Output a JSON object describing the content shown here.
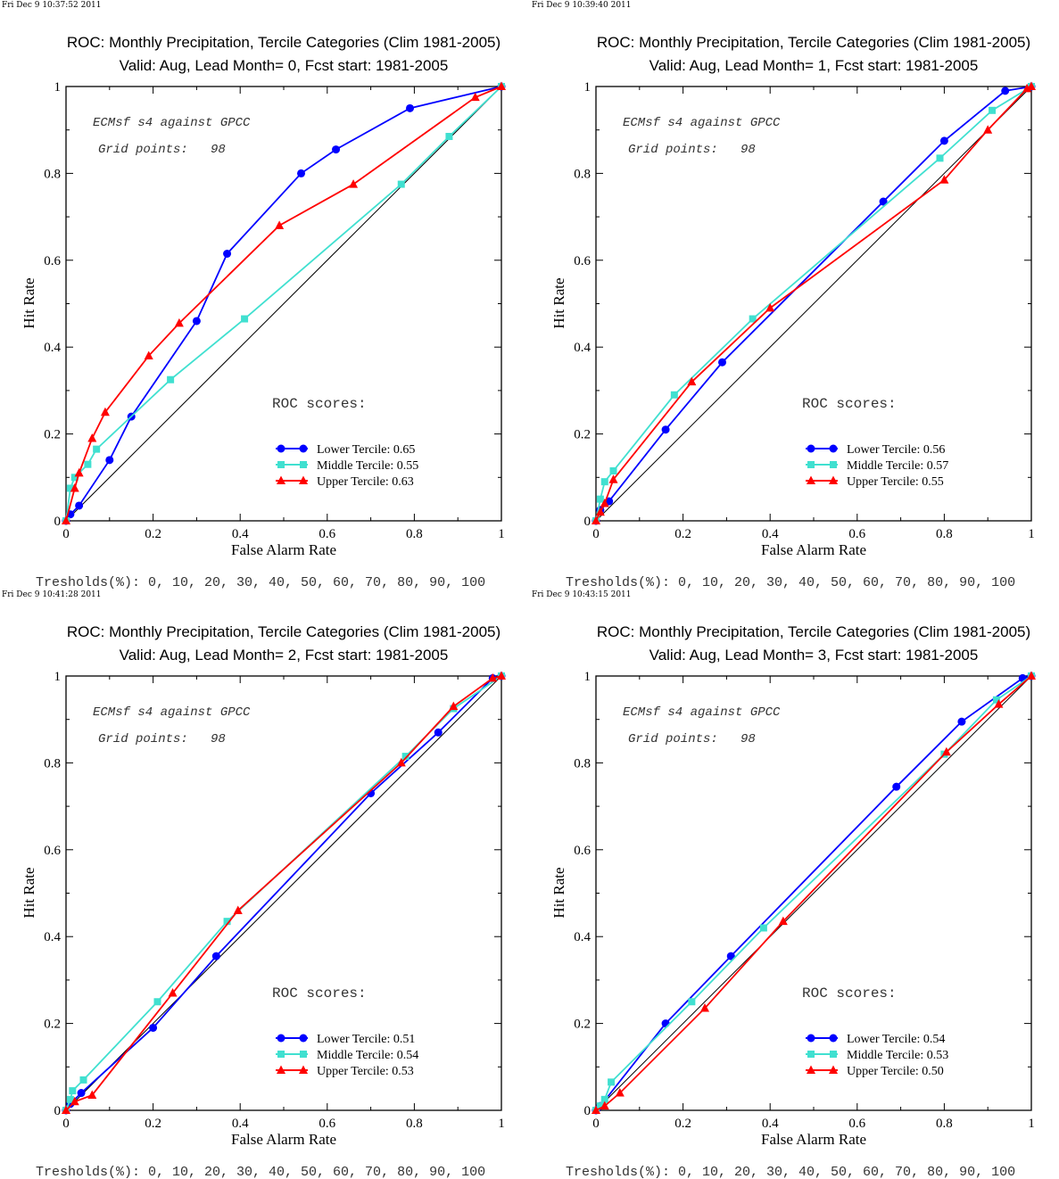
{
  "chart_data": [
    {
      "type": "line",
      "stamp": "Fri Dec  9 10:37:52 2011",
      "title": "ROC: Monthly Precipitation, Tercile Categories (Clim 1981-2005)",
      "subtitle": "Valid: Aug, Lead Month= 0, Fcst start: 1981-2005",
      "xlabel": "False Alarm Rate",
      "ylabel": "Hit Rate",
      "xlim": [
        0,
        1
      ],
      "ylim": [
        0,
        1
      ],
      "ticks": [
        "0",
        "0.2",
        "0.4",
        "0.6",
        "0.8",
        "1"
      ],
      "annotation_1": "ECMsf s4 against GPCC",
      "annotation_2": "Grid points:   98",
      "scores_heading": "ROC scores:",
      "thresholds": "Tresholds(%): 0, 10, 20, 30, 40, 50, 60, 70, 80, 90, 100",
      "series": [
        {
          "name": "Lower Tercile: 0.65",
          "color": "#0000ff",
          "marker": "circle",
          "x": [
            0.0,
            0.01,
            0.03,
            0.1,
            0.15,
            0.3,
            0.37,
            0.54,
            0.62,
            0.79,
            1.0
          ],
          "y": [
            0.0,
            0.015,
            0.035,
            0.14,
            0.24,
            0.46,
            0.615,
            0.8,
            0.855,
            0.95,
            1.0
          ]
        },
        {
          "name": "Middle Tercile: 0.55",
          "color": "#40e0d0",
          "marker": "square",
          "x": [
            0.0,
            0.01,
            0.02,
            0.05,
            0.07,
            0.24,
            0.41,
            0.77,
            0.88,
            1.0
          ],
          "y": [
            0.0,
            0.075,
            0.1,
            0.13,
            0.165,
            0.325,
            0.465,
            0.775,
            0.885,
            1.0
          ]
        },
        {
          "name": "Upper Tercile: 0.63",
          "color": "#ff0000",
          "marker": "triangle",
          "x": [
            0.0,
            0.02,
            0.03,
            0.06,
            0.09,
            0.19,
            0.26,
            0.49,
            0.66,
            0.94,
            1.0
          ],
          "y": [
            0.0,
            0.075,
            0.11,
            0.19,
            0.25,
            0.38,
            0.455,
            0.68,
            0.775,
            0.975,
            1.0
          ]
        }
      ]
    },
    {
      "type": "line",
      "stamp": "Fri Dec  9 10:39:40 2011",
      "title": "ROC: Monthly Precipitation, Tercile Categories (Clim 1981-2005)",
      "subtitle": "Valid: Aug, Lead Month= 1, Fcst start: 1981-2005",
      "xlabel": "False Alarm Rate",
      "ylabel": "Hit Rate",
      "xlim": [
        0,
        1
      ],
      "ylim": [
        0,
        1
      ],
      "ticks": [
        "0",
        "0.2",
        "0.4",
        "0.6",
        "0.8",
        "1"
      ],
      "annotation_1": "ECMsf s4 against GPCC",
      "annotation_2": "Grid points:   98",
      "scores_heading": "ROC scores:",
      "thresholds": "Tresholds(%): 0, 10, 20, 30, 40, 50, 60, 70, 80, 90, 100",
      "series": [
        {
          "name": "Lower Tercile: 0.56",
          "color": "#0000ff",
          "marker": "circle",
          "x": [
            0.0,
            0.01,
            0.03,
            0.16,
            0.29,
            0.66,
            0.8,
            0.94,
            1.0
          ],
          "y": [
            0.0,
            0.025,
            0.045,
            0.21,
            0.365,
            0.735,
            0.875,
            0.99,
            1.0
          ]
        },
        {
          "name": "Middle Tercile: 0.57",
          "color": "#40e0d0",
          "marker": "square",
          "x": [
            0.0,
            0.01,
            0.02,
            0.04,
            0.18,
            0.36,
            0.79,
            0.91,
            1.0
          ],
          "y": [
            0.0,
            0.05,
            0.09,
            0.115,
            0.29,
            0.465,
            0.835,
            0.945,
            1.0
          ]
        },
        {
          "name": "Upper Tercile: 0.55",
          "color": "#ff0000",
          "marker": "triangle",
          "x": [
            0.0,
            0.01,
            0.02,
            0.04,
            0.22,
            0.4,
            0.8,
            0.9,
            0.99,
            1.0
          ],
          "y": [
            0.0,
            0.02,
            0.04,
            0.095,
            0.32,
            0.49,
            0.785,
            0.9,
            0.995,
            1.0
          ]
        }
      ]
    },
    {
      "type": "line",
      "stamp": "Fri Dec  9 10:41:28 2011",
      "title": "ROC: Monthly Precipitation, Tercile Categories (Clim 1981-2005)",
      "subtitle": "Valid: Aug, Lead Month= 2, Fcst start: 1981-2005",
      "xlabel": "False Alarm Rate",
      "ylabel": "Hit Rate",
      "xlim": [
        0,
        1
      ],
      "ylim": [
        0,
        1
      ],
      "ticks": [
        "0",
        "0.2",
        "0.4",
        "0.6",
        "0.8",
        "1"
      ],
      "annotation_1": "ECMsf s4 against GPCC",
      "annotation_2": "Grid points:   98",
      "scores_heading": "ROC scores:",
      "thresholds": "Tresholds(%): 0, 10, 20, 30, 40, 50, 60, 70, 80, 90, 100",
      "series": [
        {
          "name": "Lower Tercile: 0.51",
          "color": "#0000ff",
          "marker": "circle",
          "x": [
            0.0,
            0.01,
            0.035,
            0.2,
            0.345,
            0.7,
            0.855,
            0.98,
            1.0
          ],
          "y": [
            0.0,
            0.015,
            0.04,
            0.19,
            0.355,
            0.73,
            0.87,
            0.995,
            1.0
          ]
        },
        {
          "name": "Middle Tercile: 0.54",
          "color": "#40e0d0",
          "marker": "square",
          "x": [
            0.0,
            0.01,
            0.015,
            0.04,
            0.21,
            0.37,
            0.78,
            0.89,
            1.0
          ],
          "y": [
            0.0,
            0.025,
            0.045,
            0.07,
            0.25,
            0.435,
            0.815,
            0.925,
            1.0
          ]
        },
        {
          "name": "Upper Tercile: 0.53",
          "color": "#ff0000",
          "marker": "triangle",
          "x": [
            0.0,
            0.02,
            0.06,
            0.245,
            0.395,
            0.77,
            0.89,
            0.98,
            1.0
          ],
          "y": [
            0.0,
            0.02,
            0.035,
            0.27,
            0.46,
            0.8,
            0.93,
            0.995,
            1.0
          ]
        }
      ]
    },
    {
      "type": "line",
      "stamp": "Fri Dec  9 10:43:15 2011",
      "title": "ROC: Monthly Precipitation, Tercile Categories (Clim 1981-2005)",
      "subtitle": "Valid: Aug, Lead Month= 3, Fcst start: 1981-2005",
      "xlabel": "False Alarm Rate",
      "ylabel": "Hit Rate",
      "xlim": [
        0,
        1
      ],
      "ylim": [
        0,
        1
      ],
      "ticks": [
        "0",
        "0.2",
        "0.4",
        "0.6",
        "0.8",
        "1"
      ],
      "annotation_1": "ECMsf s4 against GPCC",
      "annotation_2": "Grid points:   98",
      "scores_heading": "ROC scores:",
      "thresholds": "Tresholds(%): 0, 10, 20, 30, 40, 50, 60, 70, 80, 90, 100",
      "series": [
        {
          "name": "Lower Tercile: 0.54",
          "color": "#0000ff",
          "marker": "circle",
          "x": [
            0.0,
            0.01,
            0.16,
            0.31,
            0.69,
            0.84,
            0.98,
            1.0
          ],
          "y": [
            0.0,
            0.01,
            0.2,
            0.355,
            0.745,
            0.895,
            0.995,
            1.0
          ]
        },
        {
          "name": "Middle Tercile: 0.53",
          "color": "#40e0d0",
          "marker": "square",
          "x": [
            0.0,
            0.01,
            0.02,
            0.035,
            0.22,
            0.385,
            0.8,
            0.92,
            1.0
          ],
          "y": [
            0.0,
            0.01,
            0.025,
            0.065,
            0.25,
            0.42,
            0.82,
            0.945,
            1.0
          ]
        },
        {
          "name": "Upper Tercile: 0.50",
          "color": "#ff0000",
          "marker": "triangle",
          "x": [
            0.0,
            0.02,
            0.055,
            0.25,
            0.43,
            0.805,
            0.925,
            1.0
          ],
          "y": [
            0.0,
            0.01,
            0.04,
            0.235,
            0.435,
            0.825,
            0.935,
            1.0
          ]
        }
      ]
    }
  ]
}
